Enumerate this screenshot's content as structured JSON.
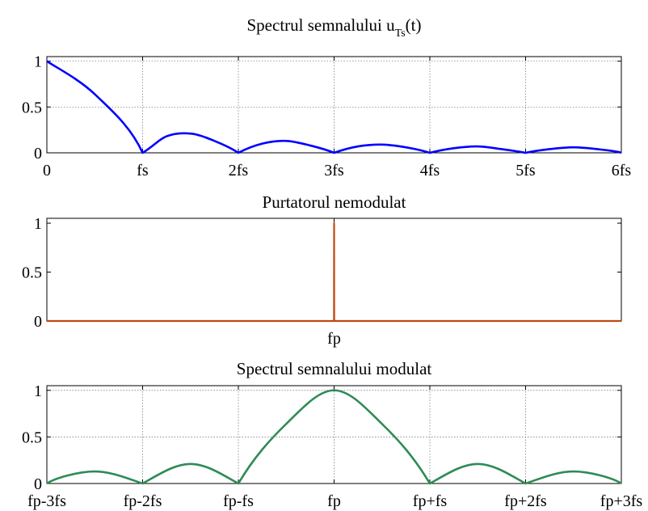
{
  "chart_data": [
    {
      "type": "line",
      "title": "Spectrul semnalului u",
      "title_subscript": "Ts",
      "title_suffix": "(t)",
      "xlabel": "",
      "ylabel": "",
      "ylim": [
        0,
        1.05
      ],
      "xlim": [
        0,
        6
      ],
      "yticks": [
        0,
        0.5,
        1
      ],
      "ytick_labels": [
        "0",
        "0.5",
        "1"
      ],
      "xticks": [
        0,
        1,
        2,
        3,
        4,
        5,
        6
      ],
      "xtick_labels": [
        "0",
        "fs",
        "2fs",
        "3fs",
        "4fs",
        "5fs",
        "6fs"
      ],
      "grid": true,
      "legend": "none",
      "series": [
        {
          "color": "#0000ff",
          "x": [
            0,
            0.5,
            1,
            1.25,
            1.5,
            1.75,
            2,
            2.25,
            2.5,
            2.75,
            3,
            3.25,
            3.5,
            3.75,
            4,
            4.25,
            4.5,
            4.75,
            5,
            5.25,
            5.5,
            5.75,
            6
          ],
          "values": [
            1,
            0.64,
            0,
            0.18,
            0.21,
            0.13,
            0,
            0.1,
            0.13,
            0.08,
            0,
            0.07,
            0.09,
            0.06,
            0,
            0.05,
            0.07,
            0.04,
            0,
            0.04,
            0.06,
            0.04,
            0
          ]
        }
      ]
    },
    {
      "type": "line",
      "title": "Purtatorul nemodulat",
      "xlabel": "",
      "ylabel": "",
      "ylim": [
        0,
        1.05
      ],
      "xlim": [
        -3,
        3
      ],
      "yticks": [
        0,
        0.5,
        1
      ],
      "ytick_labels": [
        "0",
        "0.5",
        "1"
      ],
      "xticks": [
        0
      ],
      "xtick_labels": [
        "fp"
      ],
      "grid": false,
      "legend": "none",
      "series": [
        {
          "color": "#c04a10",
          "x": [
            -3,
            -0.001,
            0,
            0.001,
            3
          ],
          "values": [
            0,
            0,
            1,
            0,
            0
          ]
        }
      ]
    },
    {
      "type": "line",
      "title": "Spectrul semnalului modulat",
      "xlabel": "",
      "ylabel": "",
      "ylim": [
        0,
        1.05
      ],
      "xlim": [
        -3,
        3
      ],
      "yticks": [
        0,
        0.5,
        1
      ],
      "ytick_labels": [
        "0",
        "0.5",
        "1"
      ],
      "xticks": [
        -3,
        -2,
        -1,
        0,
        1,
        2,
        3
      ],
      "xtick_labels": [
        "fp-3fs",
        "fp-2fs",
        "fp-fs",
        "fp",
        "fp+fs",
        "fp+2fs",
        "fp+3fs"
      ],
      "grid": true,
      "legend": "none",
      "series": [
        {
          "color": "#2e8b57",
          "x": [
            -3,
            -2.5,
            -2,
            -1.5,
            -1,
            -0.5,
            0,
            0.5,
            1,
            1.5,
            2,
            2.5,
            3
          ],
          "values": [
            0,
            0.13,
            0,
            0.21,
            0,
            0.64,
            1,
            0.64,
            0,
            0.21,
            0,
            0.13,
            0
          ]
        }
      ]
    }
  ]
}
